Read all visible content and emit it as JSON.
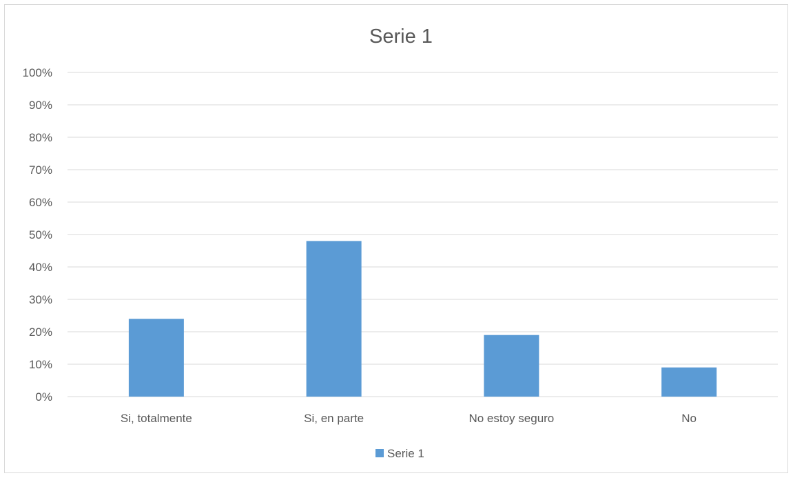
{
  "chart_data": {
    "type": "bar",
    "title": "Serie 1",
    "categories": [
      "Si, totalmente",
      "Si, en parte",
      "No estoy seguro",
      "No"
    ],
    "series": [
      {
        "name": "Serie 1",
        "values": [
          24,
          48,
          19,
          9
        ],
        "color": "#5b9bd5"
      }
    ],
    "yticks": [
      "0%",
      "10%",
      "20%",
      "30%",
      "40%",
      "50%",
      "60%",
      "70%",
      "80%",
      "90%",
      "100%"
    ],
    "ylim": [
      0,
      100
    ],
    "yunit": "%",
    "grid": true,
    "legend": "bottom"
  }
}
